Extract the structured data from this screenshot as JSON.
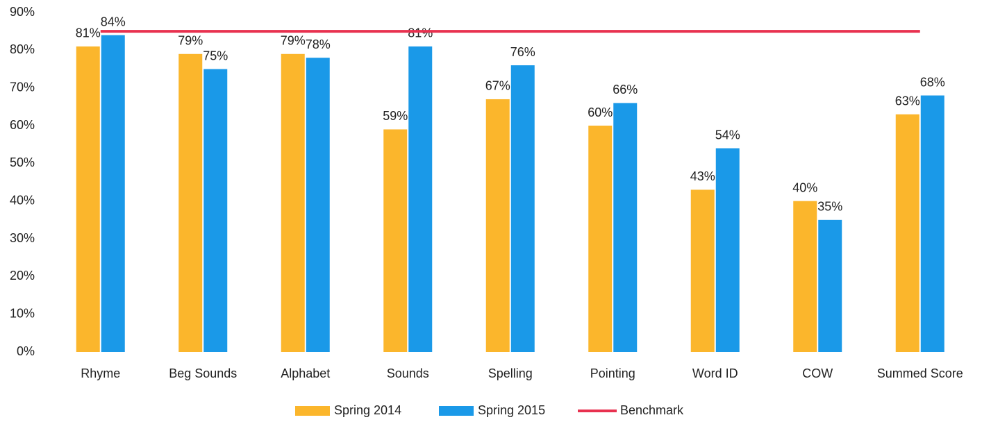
{
  "chart_data": {
    "type": "bar",
    "categories": [
      "Rhyme",
      "Beg Sounds",
      "Alphabet",
      "Sounds",
      "Spelling",
      "Pointing",
      "Word ID",
      "COW",
      "Summed Score"
    ],
    "series": [
      {
        "name": "Spring 2014",
        "color": "#fbb62c",
        "values": [
          81,
          79,
          79,
          59,
          67,
          60,
          43,
          40,
          63
        ],
        "value_labels": [
          "81%",
          "79%",
          "79%",
          "59%",
          "67%",
          "60%",
          "43%",
          "40%",
          "63%"
        ]
      },
      {
        "name": "Spring 2015",
        "color": "#1a99e8",
        "values": [
          84,
          75,
          78,
          81,
          76,
          66,
          54,
          35,
          68
        ],
        "value_labels": [
          "84%",
          "75%",
          "78%",
          "81%",
          "76%",
          "66%",
          "54%",
          "35%",
          "68%"
        ]
      },
      {
        "name": "Benchmark",
        "type": "line",
        "color": "#e8314f",
        "values": [
          85,
          85,
          85,
          85,
          85,
          85,
          85,
          85,
          85
        ]
      }
    ],
    "ylim": [
      0,
      90
    ],
    "yticks": [
      {
        "value": 0,
        "label": "0%"
      },
      {
        "value": 10,
        "label": "10%"
      },
      {
        "value": 20,
        "label": "20%"
      },
      {
        "value": 30,
        "label": "30%"
      },
      {
        "value": 40,
        "label": "40%"
      },
      {
        "value": 50,
        "label": "50%"
      },
      {
        "value": 60,
        "label": "60%"
      },
      {
        "value": 70,
        "label": "70%"
      },
      {
        "value": 80,
        "label": "80%"
      },
      {
        "value": 90,
        "label": "90%"
      }
    ],
    "grid": false,
    "legend": "bottom"
  }
}
